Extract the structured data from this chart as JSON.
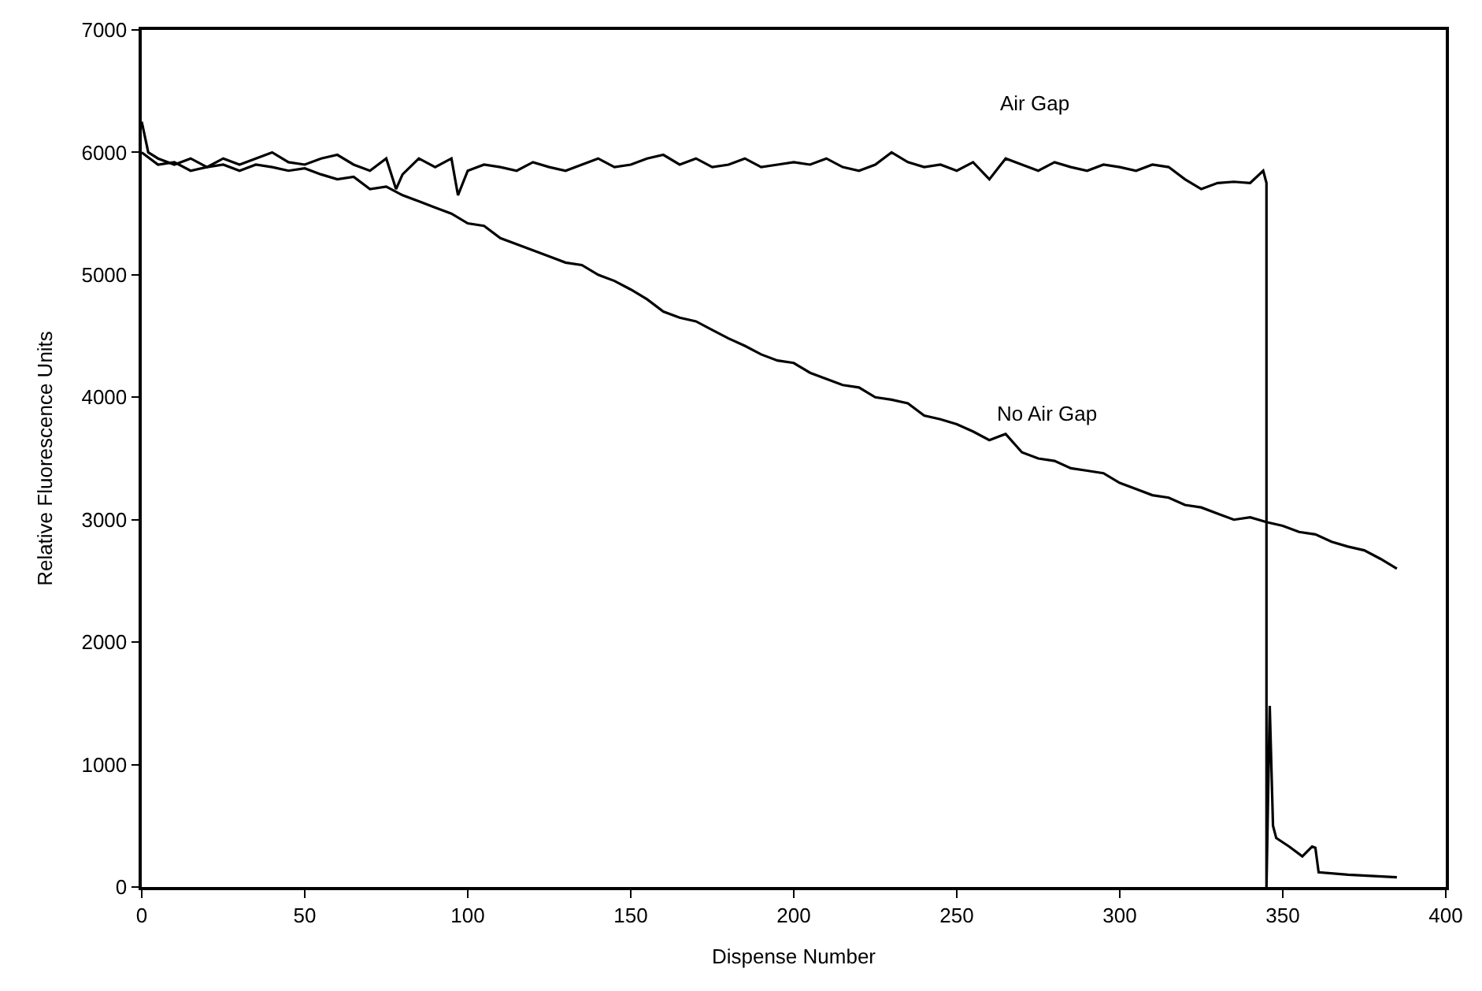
{
  "chart_data": {
    "type": "line",
    "xlabel": "Dispense Number",
    "ylabel": "Relative Fluorescence Units",
    "xlim": [
      0,
      400
    ],
    "xticks": [
      0,
      50,
      100,
      150,
      200,
      250,
      300,
      350,
      400
    ],
    "ylim": [
      0,
      7000
    ],
    "yticks": [
      0,
      1000,
      2000,
      3000,
      4000,
      5000,
      6000,
      7000
    ],
    "marker": "none",
    "line_style": "solid",
    "series": [
      {
        "color": "#000000",
        "x": [
          0,
          2,
          5,
          10,
          15,
          20,
          25,
          30,
          35,
          40,
          45,
          50,
          55,
          60,
          65,
          70,
          75,
          78,
          80,
          85,
          90,
          95,
          97,
          100,
          105,
          110,
          115,
          120,
          125,
          130,
          135,
          140,
          145,
          150,
          155,
          160,
          165,
          170,
          175,
          180,
          185,
          190,
          195,
          200,
          205,
          210,
          215,
          220,
          225,
          230,
          235,
          240,
          245,
          250,
          255,
          260,
          265,
          270,
          275,
          280,
          285,
          290,
          295,
          300,
          305,
          310,
          315,
          320,
          325,
          330,
          335,
          340,
          344,
          345,
          345,
          346,
          347,
          348,
          352,
          356,
          359,
          360,
          361,
          370,
          385
        ],
        "values": [
          6250,
          6000,
          5950,
          5900,
          5950,
          5880,
          5950,
          5900,
          5950,
          6000,
          5920,
          5900,
          5950,
          5980,
          5900,
          5850,
          5950,
          5700,
          5820,
          5950,
          5880,
          5950,
          5650,
          5850,
          5900,
          5880,
          5850,
          5920,
          5880,
          5850,
          5900,
          5950,
          5880,
          5900,
          5950,
          5980,
          5900,
          5950,
          5880,
          5900,
          5950,
          5880,
          5900,
          5920,
          5900,
          5950,
          5880,
          5850,
          5900,
          6000,
          5920,
          5880,
          5900,
          5850,
          5920,
          5780,
          5950,
          5900,
          5850,
          5920,
          5880,
          5850,
          5900,
          5880,
          5850,
          5900,
          5880,
          5780,
          5700,
          5750,
          5760,
          5750,
          5850,
          5750,
          0,
          1480,
          500,
          400,
          330,
          250,
          330,
          320,
          120,
          100,
          80
        ]
      },
      {
        "color": "#000000",
        "x": [
          0,
          5,
          10,
          15,
          20,
          25,
          30,
          35,
          40,
          45,
          50,
          55,
          60,
          65,
          70,
          75,
          80,
          85,
          90,
          95,
          100,
          105,
          110,
          115,
          120,
          125,
          130,
          135,
          140,
          145,
          150,
          155,
          160,
          165,
          170,
          175,
          180,
          185,
          190,
          195,
          200,
          205,
          210,
          215,
          220,
          225,
          230,
          235,
          240,
          245,
          250,
          255,
          260,
          265,
          270,
          275,
          280,
          285,
          290,
          295,
          300,
          305,
          310,
          315,
          320,
          325,
          330,
          335,
          340,
          345,
          350,
          355,
          360,
          365,
          370,
          375,
          380,
          385
        ],
        "values": [
          6000,
          5900,
          5920,
          5850,
          5880,
          5900,
          5850,
          5900,
          5880,
          5850,
          5870,
          5820,
          5780,
          5800,
          5700,
          5720,
          5650,
          5600,
          5550,
          5500,
          5420,
          5400,
          5300,
          5250,
          5200,
          5150,
          5100,
          5080,
          5000,
          4950,
          4880,
          4800,
          4700,
          4650,
          4620,
          4550,
          4480,
          4420,
          4350,
          4300,
          4280,
          4200,
          4150,
          4100,
          4080,
          4000,
          3980,
          3950,
          3850,
          3820,
          3780,
          3720,
          3650,
          3700,
          3550,
          3500,
          3480,
          3420,
          3400,
          3380,
          3300,
          3250,
          3200,
          3180,
          3120,
          3100,
          3050,
          3000,
          3020,
          2980,
          2950,
          2900,
          2880,
          2820,
          2780,
          2750,
          2680,
          2600
        ]
      }
    ],
    "annotations": [
      "Air Gap",
      "No Air Gap"
    ]
  }
}
